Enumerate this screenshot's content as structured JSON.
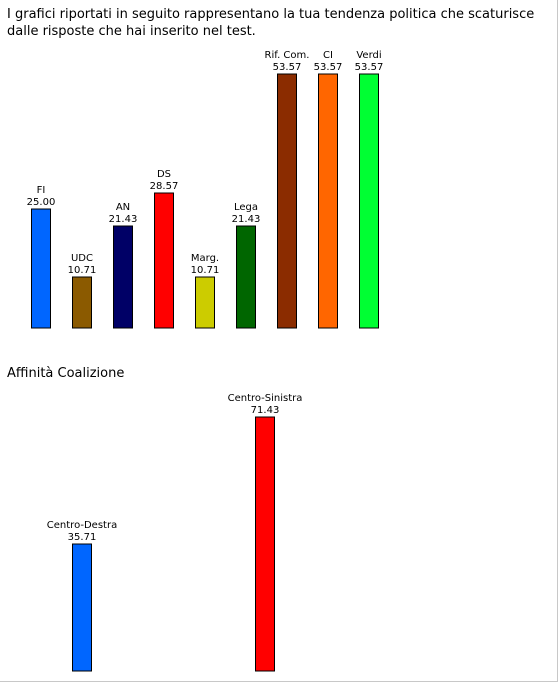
{
  "intro_text": "I grafici riportati in seguito rappresentano la tua tendenza politica che scaturisce dalle risposte che hai inserito nel test.",
  "coalition_title": "Affinità Coalizione",
  "chart_data": [
    {
      "type": "bar",
      "title": "",
      "categories": [
        "FI",
        "UDC",
        "AN",
        "DS",
        "Marg.",
        "Lega",
        "Rif. Com.",
        "CI",
        "Verdi"
      ],
      "values": [
        25.0,
        10.71,
        21.43,
        28.57,
        10.71,
        21.43,
        53.57,
        53.57,
        53.57
      ],
      "value_labels": [
        "25.00",
        "10.71",
        "21.43",
        "28.57",
        "10.71",
        "21.43",
        "53.57",
        "53.57",
        "53.57"
      ],
      "colors": [
        "#0066ff",
        "#8b5a00",
        "#000066",
        "#ff0000",
        "#cccc00",
        "#006600",
        "#8b2c00",
        "#ff6600",
        "#00ff33"
      ],
      "ylim": [
        0,
        53.57
      ],
      "grid": false,
      "legend": "none"
    },
    {
      "type": "bar",
      "title": "Affinità Coalizione",
      "categories": [
        "Centro-Destra",
        "Centro-Sinistra"
      ],
      "values": [
        35.71,
        71.43
      ],
      "value_labels": [
        "35.71",
        "71.43"
      ],
      "colors": [
        "#0066ff",
        "#ff0000"
      ],
      "ylim": [
        0,
        71.43
      ],
      "grid": false,
      "legend": "none"
    }
  ]
}
